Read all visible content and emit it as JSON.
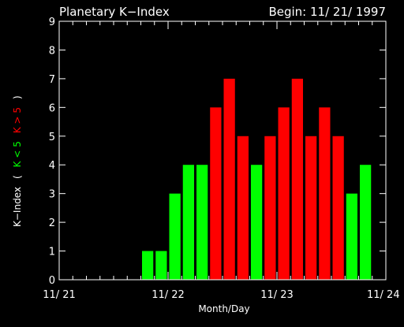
{
  "chart_data": {
    "type": "bar",
    "title": "Planetary K−Index",
    "begin_label": "Begin: 11/ 21/ 1997",
    "xlabel": "Month/Day",
    "ylabel_parts": [
      {
        "text": "K−Index",
        "color": "#ffffff"
      },
      {
        "text": "(",
        "color": "#ffffff"
      },
      {
        "text": "K < 5",
        "color": "#00ff00"
      },
      {
        "text": "K > 5",
        "color": "#ff0000"
      },
      {
        "text": ")",
        "color": "#ffffff"
      }
    ],
    "ylim": [
      0,
      9
    ],
    "yticks": [
      "0",
      "1",
      "2",
      "3",
      "4",
      "5",
      "6",
      "7",
      "8",
      "9"
    ],
    "x_tick_labels": [
      "11/ 21",
      "11/ 22",
      "11/ 23",
      "11/ 24"
    ],
    "interval_hours": 3,
    "x_range_hours": [
      0,
      72
    ],
    "colors": {
      "low": "#00ff00",
      "high": "#ff0000",
      "axis": "#ffffff",
      "background": "#000000"
    },
    "values": [
      0,
      0,
      0,
      0,
      0,
      0,
      1,
      1,
      3,
      4,
      4,
      6,
      7,
      5,
      4,
      5,
      6,
      7,
      5,
      6,
      5,
      3,
      4,
      0
    ],
    "bar_colors": [
      "low",
      "low",
      "low",
      "low",
      "low",
      "low",
      "low",
      "low",
      "low",
      "low",
      "low",
      "high",
      "high",
      "high",
      "low",
      "high",
      "high",
      "high",
      "high",
      "high",
      "high",
      "low",
      "low",
      "low"
    ]
  }
}
